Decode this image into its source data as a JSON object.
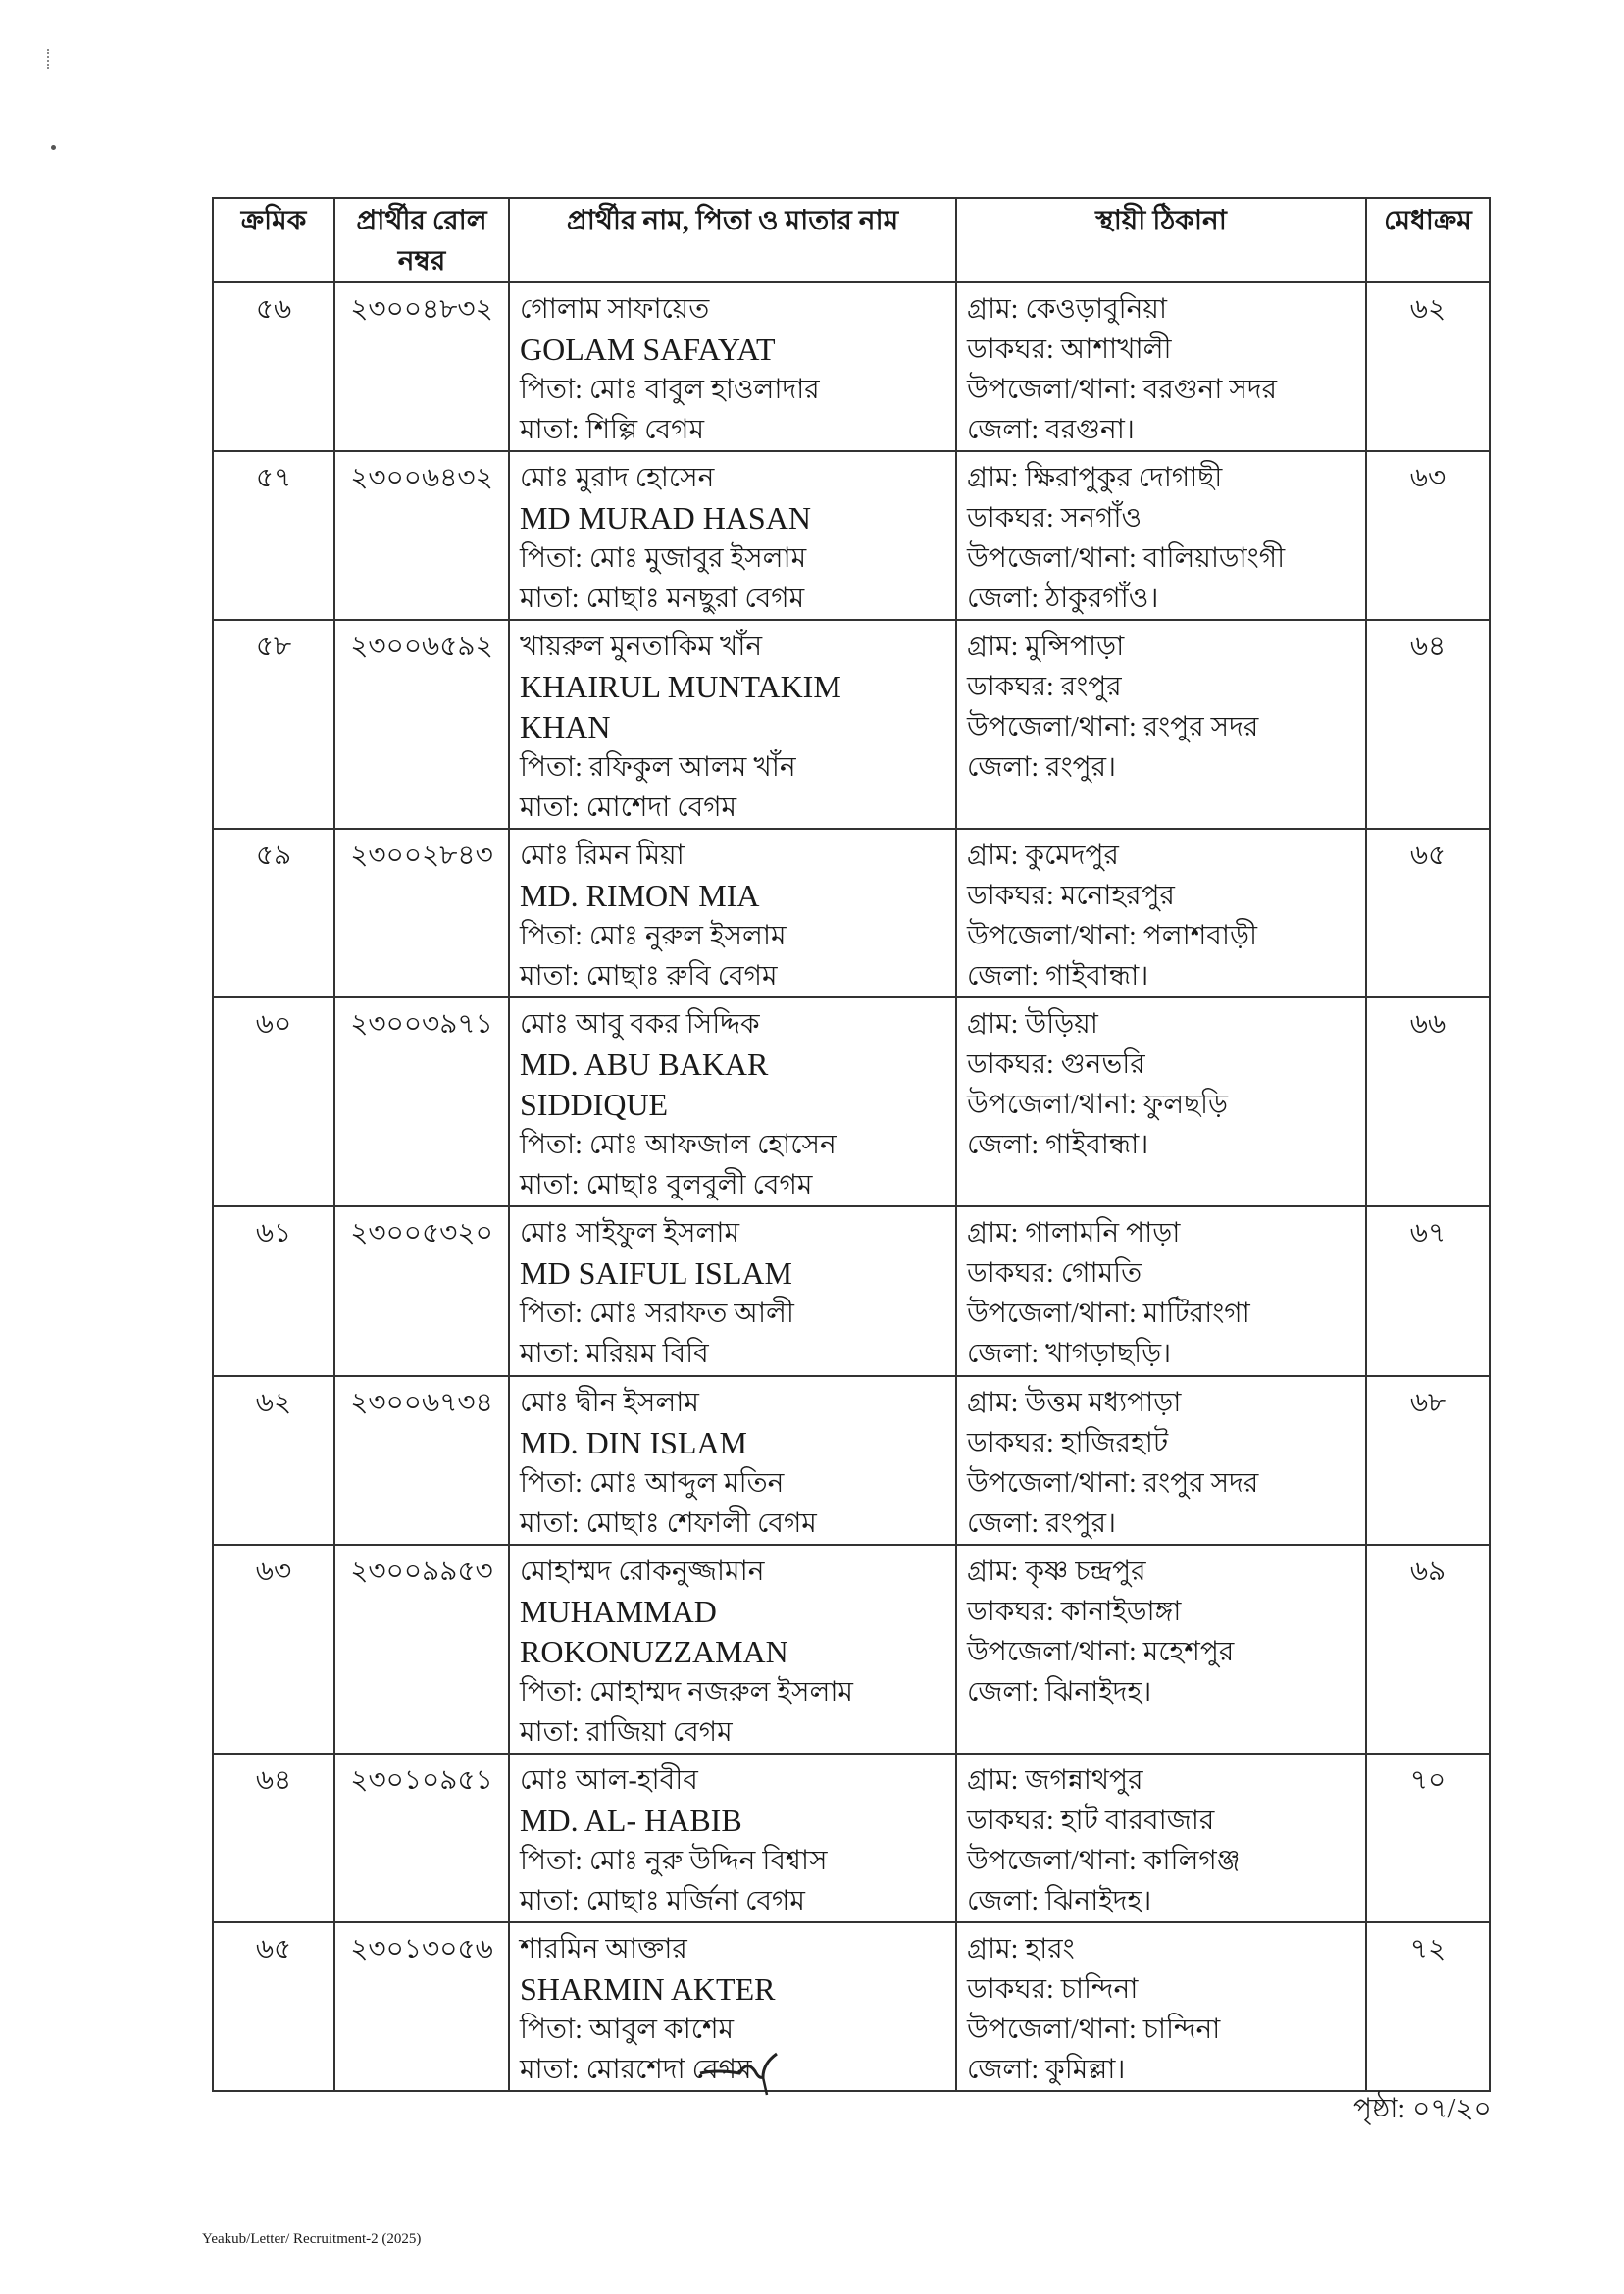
{
  "table": {
    "headers": [
      "ক্রমিক",
      "প্রার্থীর রোল নম্বর",
      "প্রার্থীর নাম, পিতা ও মাতার নাম",
      "স্থায়ী ঠিকানা",
      "মেধাক্রম"
    ],
    "rows": [
      {
        "serial": "৫৬",
        "roll": "২৩০০৪৮৩২",
        "name_bn": "গোলাম সাফায়েত",
        "name_en": [
          "GOLAM SAFAYAT"
        ],
        "father": "পিতা: মোঃ বাবুল হাওলাদার",
        "mother": "মাতা: শিল্পি বেগম",
        "address": [
          "গ্রাম: কেওড়াবুনিয়া",
          "ডাকঘর: আশাখালী",
          "উপজেলা/থানা: বরগুনা সদর",
          "জেলা: বরগুনা।"
        ],
        "merit": "৬২"
      },
      {
        "serial": "৫৭",
        "roll": "২৩০০৬৪৩২",
        "name_bn": "মোঃ মুরাদ হোসেন",
        "name_en": [
          "MD MURAD HASAN"
        ],
        "father": "পিতা: মোঃ মুজাবুর ইসলাম",
        "mother": "মাতা: মোছাঃ মনছুরা বেগম",
        "address": [
          "গ্রাম: ক্ষিরাপুকুর দোগাছী",
          "ডাকঘর: সনগাঁও",
          "উপজেলা/থানা: বালিয়াডাংগী",
          "জেলা: ঠাকুরগাঁও।"
        ],
        "merit": "৬৩"
      },
      {
        "serial": "৫৮",
        "roll": "২৩০০৬৫৯২",
        "name_bn": "খায়রুল মুনতাকিম খাঁন",
        "name_en": [
          "KHAIRUL MUNTAKIM",
          "KHAN"
        ],
        "father": "পিতা: রফিকুল আলম খাঁন",
        "mother": "মাতা: মোশেদা বেগম",
        "address": [
          "গ্রাম: মুন্সিপাড়া",
          "ডাকঘর: রংপুর",
          "উপজেলা/থানা: রংপুর সদর",
          "জেলা: রংপুর।"
        ],
        "merit": "৬৪"
      },
      {
        "serial": "৫৯",
        "roll": "২৩০০২৮৪৩",
        "name_bn": "মোঃ রিমন মিয়া",
        "name_en": [
          "MD. RIMON MIA"
        ],
        "father": "পিতা: মোঃ নুরুল ইসলাম",
        "mother": "মাতা: মোছাঃ রুবি বেগম",
        "address": [
          "গ্রাম: কুমেদপুর",
          "ডাকঘর: মনোহরপুর",
          "উপজেলা/থানা: পলাশবাড়ী",
          "জেলা: গাইবান্ধা।"
        ],
        "merit": "৬৫"
      },
      {
        "serial": "৬০",
        "roll": "২৩০০৩৯৭১",
        "name_bn": "মোঃ আবু বকর সিদ্দিক",
        "name_en": [
          "MD. ABU BAKAR",
          "SIDDIQUE"
        ],
        "father": "পিতা: মোঃ আফজাল হোসেন",
        "mother": "মাতা: মোছাঃ বুলবুলী বেগম",
        "address": [
          "গ্রাম: উড়িয়া",
          "ডাকঘর: গুনভরি",
          "উপজেলা/থানা: ফুলছড়ি",
          "জেলা: গাইবান্ধা।"
        ],
        "merit": "৬৬"
      },
      {
        "serial": "৬১",
        "roll": "২৩০০৫৩২০",
        "name_bn": "মোঃ সাইফুল ইসলাম",
        "name_en": [
          "MD SAIFUL ISLAM"
        ],
        "father": "পিতা: মোঃ সরাফত আলী",
        "mother": "মাতা: মরিয়ম বিবি",
        "address": [
          "গ্রাম: গালামনি পাড়া",
          "ডাকঘর: গোমতি",
          "উপজেলা/থানা: মাটিরাংগা",
          "জেলা: খাগড়াছড়ি।"
        ],
        "merit": "৬৭"
      },
      {
        "serial": "৬২",
        "roll": "২৩০০৬৭৩৪",
        "name_bn": "মোঃ দ্বীন ইসলাম",
        "name_en": [
          "MD. DIN ISLAM"
        ],
        "father": "পিতা: মোঃ আব্দুল মতিন",
        "mother": "মাতা: মোছাঃ শেফালী বেগম",
        "address": [
          "গ্রাম: উত্তম মধ্যপাড়া",
          "ডাকঘর: হাজিরহাট",
          "উপজেলা/থানা: রংপুর সদর",
          "জেলা: রংপুর।"
        ],
        "merit": "৬৮"
      },
      {
        "serial": "৬৩",
        "roll": "২৩০০৯৯৫৩",
        "name_bn": "মোহাম্মদ রোকনুজ্জামান",
        "name_en": [
          "MUHAMMAD",
          "ROKONUZZAMAN"
        ],
        "father": "পিতা: মোহাম্মদ নজরুল ইসলাম",
        "mother": "মাতা: রাজিয়া বেগম",
        "address": [
          "গ্রাম: কৃষ্ণ চন্দ্রপুর",
          "ডাকঘর: কানাইডাঙ্গা",
          "উপজেলা/থানা: মহেশপুর",
          "জেলা: ঝিনাইদহ।"
        ],
        "merit": "৬৯"
      },
      {
        "serial": "৬৪",
        "roll": "২৩০১০৯৫১",
        "name_bn": "মোঃ আল-হাবীব",
        "name_en": [
          "MD. AL- HABIB"
        ],
        "father": "পিতা: মোঃ নুরু উদ্দিন বিশ্বাস",
        "mother": "মাতা: মোছাঃ মর্জিনা বেগম",
        "address": [
          "গ্রাম: জগন্নাথপুর",
          "ডাকঘর: হাট বারবাজার",
          "উপজেলা/থানা: কালিগঞ্জ",
          "জেলা: ঝিনাইদহ।"
        ],
        "merit": "৭০"
      },
      {
        "serial": "৬৫",
        "roll": "২৩০১৩০৫৬",
        "name_bn": "শারমিন আক্তার",
        "name_en": [
          "SHARMIN AKTER"
        ],
        "father": "পিতা: আবুল কাশেম",
        "mother": "মাতা: মোরশেদা বেগম",
        "address": [
          "গ্রাম: হারং",
          "ডাকঘর: চান্দিনা",
          "উপজেলা/থানা: চান্দিনা",
          "জেলা: কুমিল্লা।"
        ],
        "merit": "৭২"
      }
    ]
  },
  "page_number": "পৃষ্ঠা: ০৭/২০",
  "footer_ref": "Yeakub/Letter/ Recruitment-2 (2025)"
}
